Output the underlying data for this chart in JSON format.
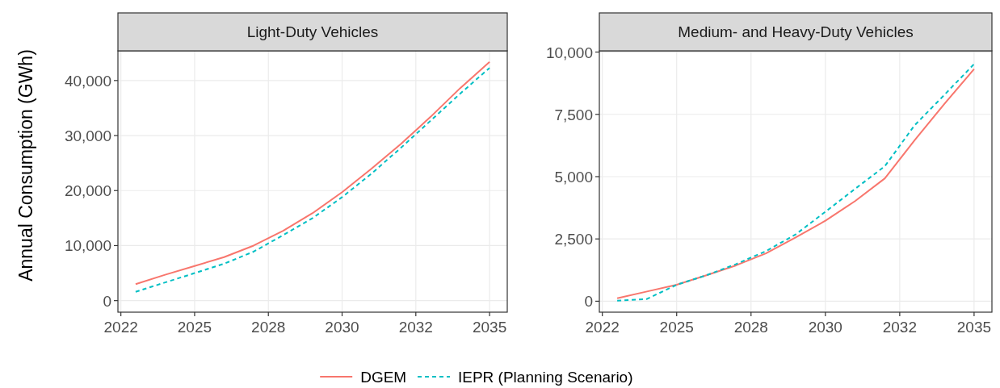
{
  "chart_data": [
    {
      "type": "line",
      "title": "Light-Duty Vehicles",
      "ylabel": "Annual Consumption (GWh)",
      "x": [
        2023,
        2024,
        2025,
        2026,
        2027,
        2028,
        2029,
        2030,
        2031,
        2032,
        2033,
        2034,
        2035
      ],
      "xlim": [
        2022.4,
        2035.6
      ],
      "xticks": [
        {
          "value": 2022.5,
          "label": "2022"
        },
        {
          "value": 2025,
          "label": "2025"
        },
        {
          "value": 2027.5,
          "label": "2028"
        },
        {
          "value": 2030,
          "label": "2030"
        },
        {
          "value": 2032.5,
          "label": "2032"
        },
        {
          "value": 2035,
          "label": "2035"
        }
      ],
      "ylim": [
        -2100,
        45400
      ],
      "yticks": [
        {
          "value": 0,
          "label": "0"
        },
        {
          "value": 10000,
          "label": "10,000"
        },
        {
          "value": 20000,
          "label": "20,000"
        },
        {
          "value": 30000,
          "label": "30,000"
        },
        {
          "value": 40000,
          "label": "40,000"
        }
      ],
      "grid": true,
      "legend": "bottom",
      "series": [
        {
          "name": "DGEM",
          "color": "#f8766d",
          "line_style": "solid",
          "values": [
            3000,
            4700,
            6300,
            7900,
            10000,
            12700,
            15900,
            19700,
            24000,
            28500,
            33400,
            38600,
            43400
          ]
        },
        {
          "name": "IEPR (Planning Scenario)",
          "color": "#00bfc4",
          "line_style": "dashed",
          "values": [
            1600,
            3300,
            5000,
            6700,
            8900,
            11900,
            15000,
            18800,
            23100,
            27800,
            32700,
            37600,
            42300
          ]
        }
      ]
    },
    {
      "type": "line",
      "title": "Medium- and Heavy-Duty Vehicles",
      "x": [
        2023,
        2024,
        2025,
        2026,
        2027,
        2028,
        2029,
        2030,
        2031,
        2032,
        2033,
        2034,
        2035
      ],
      "xlim": [
        2022.4,
        2035.6
      ],
      "xticks": [
        {
          "value": 2022.5,
          "label": "2022"
        },
        {
          "value": 2025,
          "label": "2025"
        },
        {
          "value": 2027.5,
          "label": "2028"
        },
        {
          "value": 2030,
          "label": "2030"
        },
        {
          "value": 2032.5,
          "label": "2032"
        },
        {
          "value": 2035,
          "label": "2035"
        }
      ],
      "ylim": [
        -440,
        10050
      ],
      "yticks": [
        {
          "value": 0,
          "label": "0"
        },
        {
          "value": 2500,
          "label": "2,500"
        },
        {
          "value": 5000,
          "label": "5,000"
        },
        {
          "value": 7500,
          "label": "7,500"
        },
        {
          "value": 10000,
          "label": "10,000"
        }
      ],
      "grid": true,
      "series": [
        {
          "name": "DGEM",
          "color": "#f8766d",
          "line_style": "solid",
          "values": [
            120,
            390,
            660,
            1040,
            1440,
            1920,
            2560,
            3230,
            4020,
            4930,
            6460,
            7920,
            9320
          ]
        },
        {
          "name": "IEPR (Planning Scenario)",
          "color": "#00bfc4",
          "line_style": "dashed",
          "values": [
            20,
            90,
            660,
            1040,
            1490,
            2010,
            2680,
            3590,
            4510,
            5420,
            7060,
            8280,
            9520
          ]
        }
      ]
    }
  ]
}
